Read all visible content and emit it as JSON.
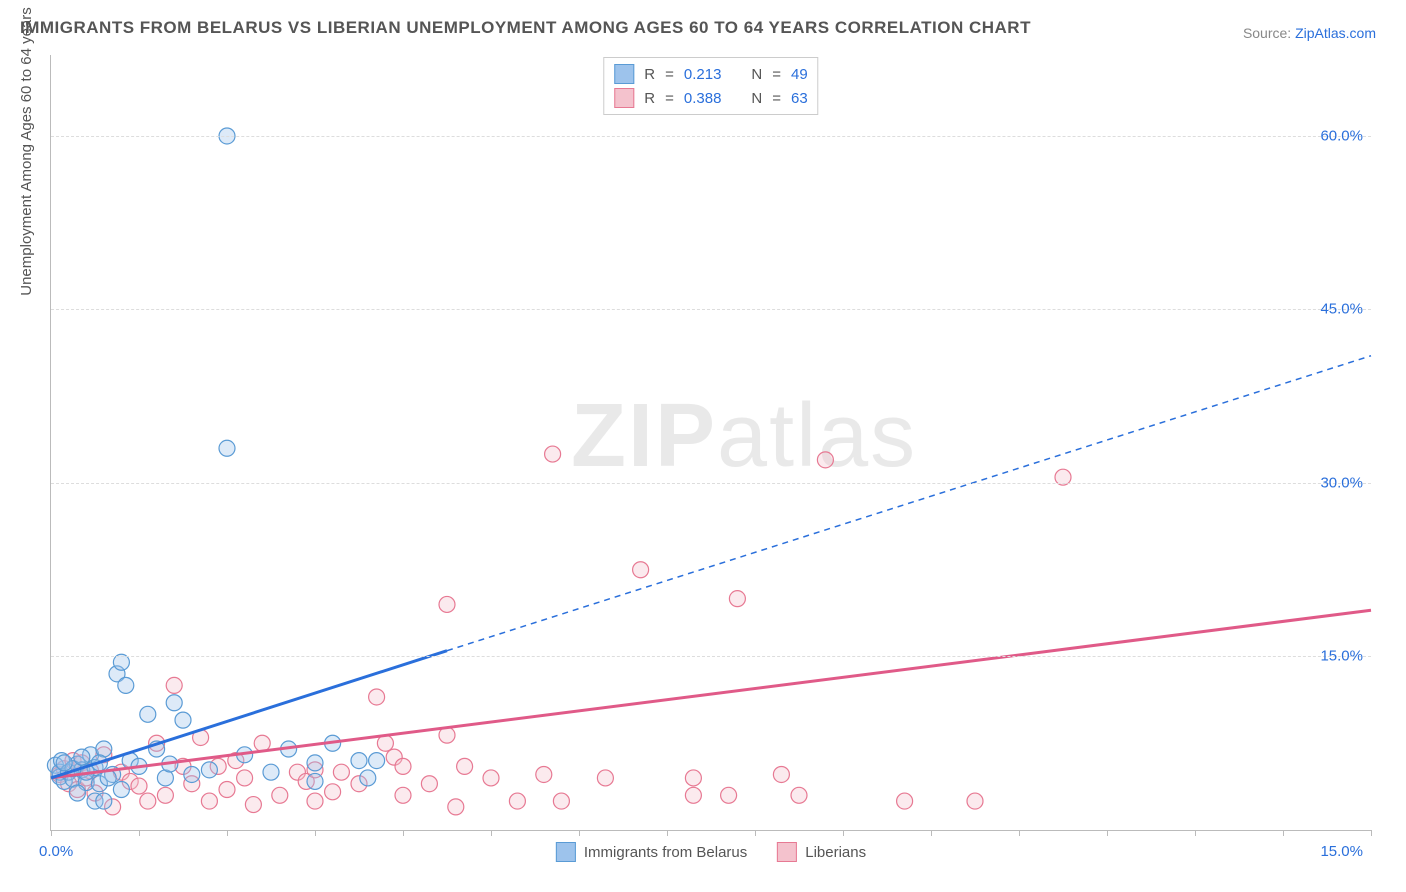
{
  "title": "IMMIGRANTS FROM BELARUS VS LIBERIAN UNEMPLOYMENT AMONG AGES 60 TO 64 YEARS CORRELATION CHART",
  "source_label": "Source: ",
  "source_link": "ZipAtlas.com",
  "y_axis_title": "Unemployment Among Ages 60 to 64 years",
  "watermark": {
    "zip": "ZIP",
    "atlas": "atlas"
  },
  "chart": {
    "type": "scatter",
    "background_color": "#ffffff",
    "grid_color": "#dddddd",
    "axis_color": "#bbbbbb",
    "text_color": "#555555",
    "accent_color": "#2a6fdb",
    "title_fontsize": 17,
    "label_fontsize": 15,
    "tick_fontsize": 15,
    "xlim": [
      0,
      15
    ],
    "ylim": [
      0,
      67
    ],
    "y_ticks": [
      15.0,
      30.0,
      45.0,
      60.0
    ],
    "y_tick_labels": [
      "15.0%",
      "30.0%",
      "45.0%",
      "60.0%"
    ],
    "x_tick_positions": [
      0,
      1,
      2,
      3,
      4,
      5,
      6,
      7,
      8,
      9,
      10,
      11,
      12,
      13,
      14,
      15
    ],
    "x_axis_label_left": "0.0%",
    "x_axis_label_right": "15.0%",
    "marker_radius": 8,
    "marker_opacity": 0.35,
    "marker_stroke_width": 1.2,
    "series": [
      {
        "name": "Immigrants from Belarus",
        "color_fill": "#9dc3ec",
        "color_stroke": "#5a9bd5",
        "line_color": "#2a6fdb",
        "line_width": 3,
        "dash_ext": "6,5",
        "R_label": "R",
        "R": "0.213",
        "N_label": "N",
        "N": "49",
        "regression": {
          "x1": 0,
          "y1": 4.5,
          "x2": 4.5,
          "y2": 15.5,
          "x3": 15,
          "y3": 41
        },
        "points": [
          [
            0.05,
            5.6
          ],
          [
            0.1,
            4.6
          ],
          [
            0.1,
            5.0
          ],
          [
            0.12,
            6.0
          ],
          [
            0.15,
            4.2
          ],
          [
            0.2,
            5.0
          ],
          [
            0.25,
            4.4
          ],
          [
            0.3,
            5.7
          ],
          [
            0.35,
            5.2
          ],
          [
            0.4,
            4.1
          ],
          [
            0.45,
            6.5
          ],
          [
            0.5,
            5.4
          ],
          [
            0.55,
            4.0
          ],
          [
            0.6,
            7.0
          ],
          [
            0.7,
            4.8
          ],
          [
            0.75,
            13.5
          ],
          [
            0.8,
            14.5
          ],
          [
            0.85,
            12.5
          ],
          [
            0.9,
            6.0
          ],
          [
            1.0,
            5.5
          ],
          [
            1.1,
            10.0
          ],
          [
            1.2,
            7.0
          ],
          [
            1.3,
            4.5
          ],
          [
            1.35,
            5.7
          ],
          [
            1.4,
            11.0
          ],
          [
            1.5,
            9.5
          ],
          [
            1.6,
            4.8
          ],
          [
            1.8,
            5.2
          ],
          [
            2.0,
            33.0
          ],
          [
            2.0,
            60.0
          ],
          [
            2.2,
            6.5
          ],
          [
            2.5,
            5.0
          ],
          [
            2.7,
            7.0
          ],
          [
            3.0,
            4.2
          ],
          [
            3.0,
            5.8
          ],
          [
            3.2,
            7.5
          ],
          [
            3.5,
            6.0
          ],
          [
            3.6,
            4.5
          ],
          [
            3.7,
            6.0
          ],
          [
            0.3,
            3.2
          ],
          [
            0.5,
            2.5
          ],
          [
            0.6,
            2.5
          ],
          [
            0.8,
            3.5
          ],
          [
            0.4,
            5.0
          ],
          [
            0.25,
            5.3
          ],
          [
            0.15,
            5.8
          ],
          [
            0.35,
            6.3
          ],
          [
            0.55,
            5.8
          ],
          [
            0.65,
            4.5
          ]
        ]
      },
      {
        "name": "Liberians",
        "color_fill": "#f4c2cd",
        "color_stroke": "#e77993",
        "line_color": "#e05a88",
        "line_width": 3,
        "R_label": "R",
        "R": "0.388",
        "N_label": "N",
        "N": "63",
        "regression": {
          "x1": 0,
          "y1": 4.5,
          "x2": 15,
          "y2": 19
        },
        "points": [
          [
            0.1,
            4.8
          ],
          [
            0.15,
            5.3
          ],
          [
            0.2,
            4.0
          ],
          [
            0.25,
            6.0
          ],
          [
            0.3,
            3.5
          ],
          [
            0.35,
            5.8
          ],
          [
            0.4,
            4.5
          ],
          [
            0.45,
            5.1
          ],
          [
            0.5,
            3.2
          ],
          [
            0.6,
            6.5
          ],
          [
            0.7,
            2.0
          ],
          [
            0.8,
            5.0
          ],
          [
            0.9,
            4.2
          ],
          [
            1.0,
            3.8
          ],
          [
            1.1,
            2.5
          ],
          [
            1.2,
            7.5
          ],
          [
            1.3,
            3.0
          ],
          [
            1.4,
            12.5
          ],
          [
            1.5,
            5.5
          ],
          [
            1.6,
            4.0
          ],
          [
            1.7,
            8.0
          ],
          [
            1.8,
            2.5
          ],
          [
            1.9,
            5.5
          ],
          [
            2.0,
            3.5
          ],
          [
            2.1,
            6.0
          ],
          [
            2.2,
            4.5
          ],
          [
            2.3,
            2.2
          ],
          [
            2.4,
            7.5
          ],
          [
            2.6,
            3.0
          ],
          [
            2.8,
            5.0
          ],
          [
            2.9,
            4.2
          ],
          [
            3.0,
            2.5
          ],
          [
            3.0,
            5.2
          ],
          [
            3.2,
            3.3
          ],
          [
            3.3,
            5.0
          ],
          [
            3.5,
            4.0
          ],
          [
            3.7,
            11.5
          ],
          [
            3.8,
            7.5
          ],
          [
            3.9,
            6.3
          ],
          [
            4.0,
            3.0
          ],
          [
            4.0,
            5.5
          ],
          [
            4.3,
            4.0
          ],
          [
            4.5,
            8.2
          ],
          [
            4.5,
            19.5
          ],
          [
            4.7,
            5.5
          ],
          [
            4.6,
            2.0
          ],
          [
            5.0,
            4.5
          ],
          [
            5.3,
            2.5
          ],
          [
            5.6,
            4.8
          ],
          [
            5.7,
            32.5
          ],
          [
            5.8,
            2.5
          ],
          [
            6.3,
            4.5
          ],
          [
            6.7,
            22.5
          ],
          [
            7.3,
            4.5
          ],
          [
            7.3,
            3.0
          ],
          [
            7.7,
            3.0
          ],
          [
            7.8,
            20.0
          ],
          [
            8.3,
            4.8
          ],
          [
            8.5,
            3.0
          ],
          [
            8.8,
            32.0
          ],
          [
            9.7,
            2.5
          ],
          [
            10.5,
            2.5
          ],
          [
            11.5,
            30.5
          ]
        ]
      }
    ]
  },
  "bottom_legend": [
    {
      "label": "Immigrants from Belarus",
      "fill": "#9dc3ec",
      "stroke": "#5a9bd5"
    },
    {
      "label": "Liberians",
      "fill": "#f4c2cd",
      "stroke": "#e77993"
    }
  ]
}
